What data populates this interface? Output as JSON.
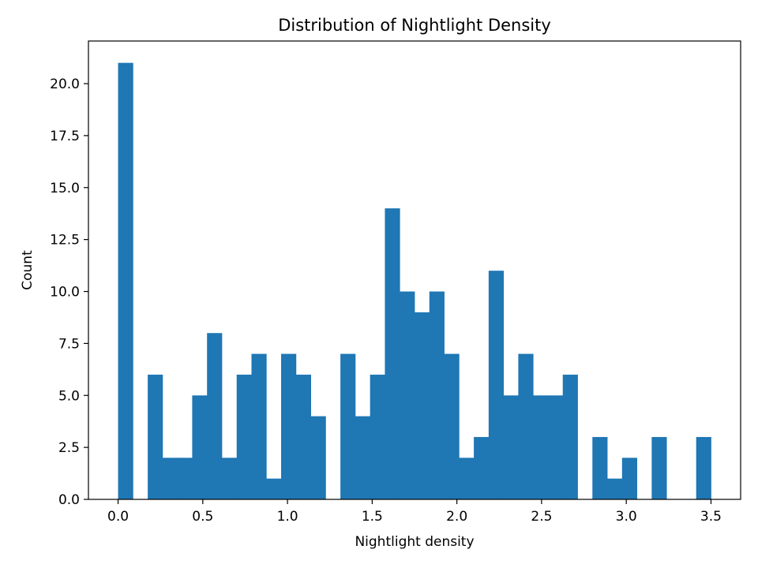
{
  "chart_data": {
    "type": "bar",
    "title": "Distribution of Nightlight Density",
    "xlabel": "Nightlight density",
    "ylabel": "Count",
    "xlim": [
      -0.175,
      3.675
    ],
    "ylim": [
      0,
      22.05
    ],
    "xticks": [
      "0.0",
      "0.5",
      "1.0",
      "1.5",
      "2.0",
      "2.5",
      "3.0",
      "3.5"
    ],
    "yticks": [
      "0.0",
      "2.5",
      "5.0",
      "7.5",
      "10.0",
      "12.5",
      "15.0",
      "17.5",
      "20.0"
    ],
    "bin_width": 0.0875,
    "bin_start": 0.0,
    "counts": [
      21,
      0,
      6,
      2,
      2,
      5,
      8,
      2,
      6,
      7,
      1,
      7,
      6,
      4,
      0,
      7,
      4,
      6,
      14,
      10,
      9,
      10,
      7,
      2,
      3,
      11,
      5,
      7,
      5,
      5,
      6,
      0,
      3,
      1,
      2,
      0,
      3,
      0,
      0,
      3
    ],
    "bar_color": "#1f77b4",
    "grid": false
  }
}
